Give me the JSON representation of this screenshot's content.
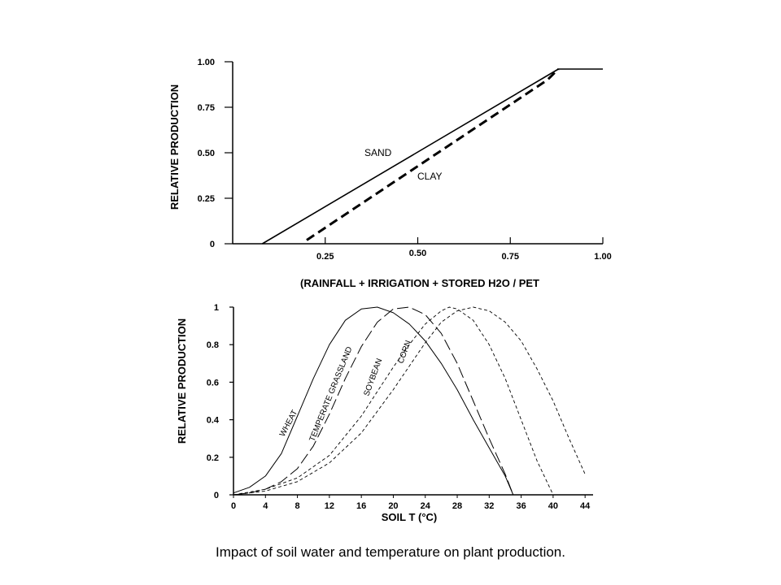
{
  "caption": "Impact of soil water and temperature on plant production.",
  "chart_data": [
    {
      "type": "line",
      "xlabel": "(RAINFALL + IRRIGATION + STORED H2O / PET",
      "ylabel": "RELATIVE PRODUCTION",
      "xlim": [
        0.0,
        1.0
      ],
      "ylim": [
        0.0,
        1.0
      ],
      "x_ticks": [
        0.25,
        0.5,
        0.75,
        1.0
      ],
      "x_tick_labels": [
        "0.25",
        "0.50",
        "0.75",
        "1.00"
      ],
      "y_ticks": [
        0,
        0.25,
        0.5,
        0.75,
        1.0
      ],
      "y_tick_labels": [
        "0",
        "0.25",
        "0.50",
        "0.75",
        "1.00"
      ],
      "grid": false,
      "series": [
        {
          "name": "SAND",
          "style": "solid",
          "x": [
            0.08,
            0.88,
            1.0
          ],
          "y": [
            0.0,
            0.96,
            0.96
          ]
        },
        {
          "name": "CLAY",
          "style": "dashed",
          "x": [
            0.2,
            0.85,
            0.88
          ],
          "y": [
            0.02,
            0.9,
            0.96
          ]
        }
      ]
    },
    {
      "type": "line",
      "xlabel": "SOIL T (°C)",
      "ylabel": "RELATIVE PRODUCTION",
      "xlim": [
        0,
        45
      ],
      "ylim": [
        0,
        1
      ],
      "x_ticks": [
        0,
        4,
        8,
        12,
        16,
        20,
        24,
        28,
        32,
        36,
        40,
        44
      ],
      "x_tick_labels": [
        "0",
        "4",
        "8",
        "12",
        "16",
        "20",
        "24",
        "28",
        "32",
        "36",
        "40",
        "44"
      ],
      "y_ticks": [
        0,
        0.2,
        0.4,
        0.6,
        0.8,
        1
      ],
      "y_tick_labels": [
        "0",
        "0.2",
        "0.4",
        "0.6",
        "0.8",
        "1"
      ],
      "grid": false,
      "series": [
        {
          "name": "WHEAT",
          "style": "solid",
          "x": [
            0,
            2,
            4,
            6,
            8,
            10,
            12,
            14,
            16,
            18,
            20,
            22,
            24,
            26,
            28,
            30,
            32,
            34,
            35
          ],
          "y": [
            0.01,
            0.04,
            0.1,
            0.22,
            0.42,
            0.62,
            0.8,
            0.93,
            0.99,
            1.0,
            0.97,
            0.91,
            0.82,
            0.7,
            0.56,
            0.4,
            0.25,
            0.1,
            0.0
          ]
        },
        {
          "name": "TEMPERATE GRASSLAND",
          "style": "long-dash",
          "x": [
            0,
            2,
            4,
            6,
            8,
            10,
            12,
            14,
            16,
            18,
            20,
            22,
            24,
            26,
            28,
            30,
            32,
            34,
            35
          ],
          "y": [
            0.0,
            0.01,
            0.03,
            0.07,
            0.14,
            0.26,
            0.43,
            0.62,
            0.79,
            0.92,
            0.99,
            1.0,
            0.96,
            0.86,
            0.7,
            0.5,
            0.3,
            0.11,
            0.0
          ]
        },
        {
          "name": "SOYBEAN",
          "style": "short-dash",
          "x": [
            0,
            4,
            8,
            12,
            16,
            18,
            20,
            22,
            24,
            26,
            27,
            28,
            30,
            32,
            34,
            36,
            38,
            40
          ],
          "y": [
            0.0,
            0.03,
            0.09,
            0.21,
            0.42,
            0.55,
            0.68,
            0.8,
            0.91,
            0.98,
            1.0,
            0.99,
            0.93,
            0.8,
            0.62,
            0.4,
            0.18,
            0.0
          ]
        },
        {
          "name": "CORN",
          "style": "short-dash",
          "x": [
            0,
            4,
            8,
            12,
            16,
            20,
            24,
            26,
            28,
            30,
            32,
            34,
            36,
            38,
            40,
            42,
            44
          ],
          "y": [
            0.0,
            0.02,
            0.07,
            0.17,
            0.33,
            0.56,
            0.81,
            0.92,
            0.98,
            1.0,
            0.98,
            0.92,
            0.82,
            0.67,
            0.5,
            0.3,
            0.11
          ]
        }
      ]
    }
  ]
}
